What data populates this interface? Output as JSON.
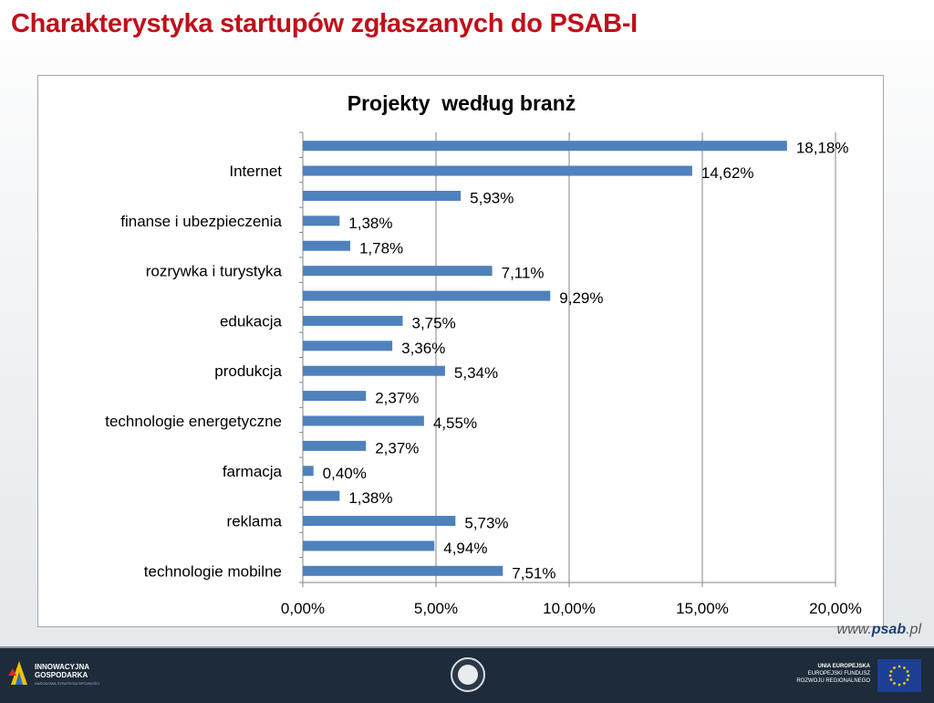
{
  "slide": {
    "title": "Charakterystyka startupów zgłaszanych do PSAB-I",
    "website_prefix": "www.",
    "website_brand": "psab",
    "website_suffix": ".pl"
  },
  "footer": {
    "left_logo_text_line1": "INNOWACYJNA",
    "left_logo_text_line2": "GOSPODARKA",
    "left_logo_subtext": "NARODOWA STRATEGIA SPÓJNOŚCI",
    "right_line1": "UNIA EUROPEJSKA",
    "right_line2": "EUROPEJSKI FUNDUSZ",
    "right_line3": "ROZWOJU REGIONALNEGO"
  },
  "colors": {
    "bar": "#4f81bd",
    "title": "#c0101a",
    "grid": "#868686"
  },
  "chart_data": {
    "type": "bar",
    "orientation": "horizontal",
    "title": "Projekty  według branż",
    "xlim": [
      0,
      20
    ],
    "x_ticks": [
      "0,00%",
      "5,00%",
      "10,00%",
      "15,00%",
      "20,00%"
    ],
    "x_tick_values": [
      0,
      5,
      10,
      15,
      20
    ],
    "grid": "vertical major gridlines",
    "legend": "none",
    "categories": [
      "",
      "Internet",
      "",
      "finanse i ubezpieczenia",
      "",
      "rozrywka i turystyka ",
      "",
      "edukacja",
      "",
      "produkcja",
      "",
      "technologie energetyczne",
      "",
      "farmacja",
      "",
      "reklama",
      "",
      "technologie mobilne"
    ],
    "values": [
      18.18,
      14.62,
      5.93,
      1.38,
      1.78,
      7.11,
      9.29,
      3.75,
      3.36,
      5.34,
      2.37,
      4.55,
      2.37,
      0.4,
      1.38,
      5.73,
      4.94,
      7.51
    ],
    "data_labels": [
      "18,18%",
      "14,62%",
      "5,93%",
      "1,38%",
      "1,78%",
      "7,11%",
      "9,29%",
      "3,75%",
      "3,36%",
      "5,34%",
      "2,37%",
      "4,55%",
      "2,37%",
      "0,40%",
      "1,38%",
      "5,73%",
      "4,94%",
      "7,51%"
    ]
  }
}
